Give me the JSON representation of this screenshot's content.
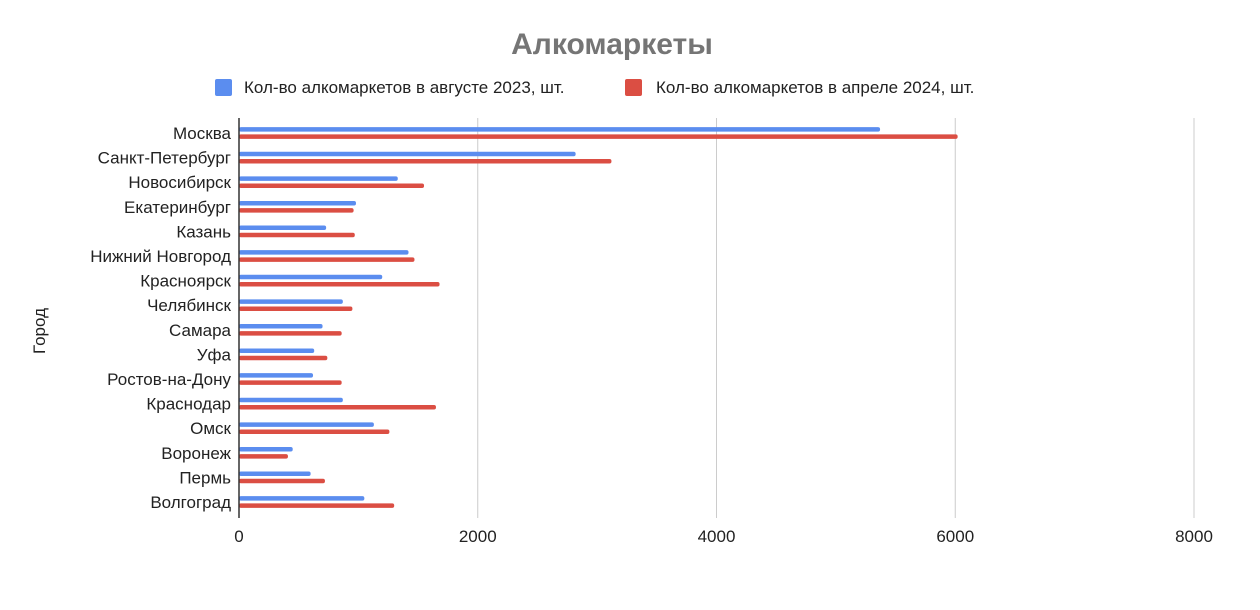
{
  "chart_data": {
    "type": "bar",
    "orientation": "horizontal",
    "title": "Алкомаркеты",
    "xlabel": "",
    "ylabel": "Город",
    "xlim": [
      0,
      8000
    ],
    "xticks": [
      0,
      2000,
      4000,
      6000,
      8000
    ],
    "grid": true,
    "legend": "top",
    "categories": [
      "Москва",
      "Санкт-Петербург",
      "Новосибирск",
      "Екатеринбург",
      "Казань",
      "Нижний Новгород",
      "Красноярск",
      "Челябинск",
      "Самара",
      "Уфа",
      "Ростов-на-Дону",
      "Краснодар",
      "Омск",
      "Воронеж",
      "Пермь",
      "Волгоград"
    ],
    "series": [
      {
        "name": "Кол-во алкомаркетов в августе 2023, шт.",
        "color": "#5b8def",
        "values": [
          5370,
          2820,
          1330,
          980,
          730,
          1420,
          1200,
          870,
          700,
          630,
          620,
          870,
          1130,
          450,
          600,
          1050
        ]
      },
      {
        "name": "Кол-во алкомаркетов в апреле 2024, шт.",
        "color": "#db4e43",
        "values": [
          6020,
          3120,
          1550,
          960,
          970,
          1470,
          1680,
          950,
          860,
          740,
          860,
          1650,
          1260,
          410,
          720,
          1300
        ]
      }
    ]
  }
}
